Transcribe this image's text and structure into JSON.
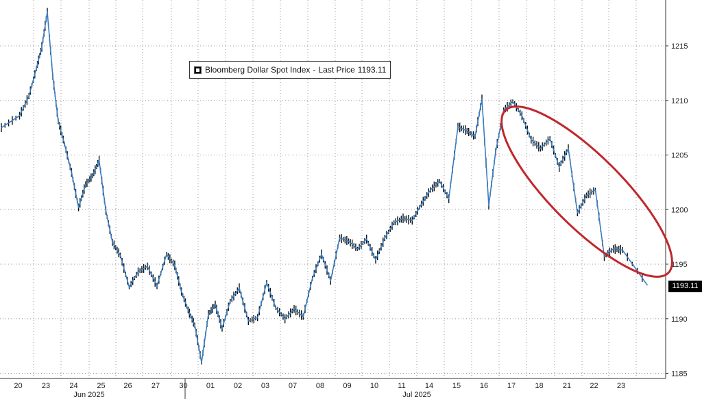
{
  "legend": {
    "series_name": "Bloomberg Dollar Spot Index",
    "field": "Last Price",
    "value": "1193.11",
    "separator": "-"
  },
  "last_value_tag": "1193.11",
  "colors": {
    "line": "#3a7fc1",
    "candle_wick": "#111111",
    "annotation_ellipse": "#c0282d",
    "grid": "#9a9a9a"
  },
  "chart_data": {
    "type": "line",
    "title": "",
    "series": [
      {
        "name": "Bloomberg Dollar Spot Index - Last Price",
        "last": 1193.11
      }
    ],
    "x_tick_labels": [
      "20",
      "23",
      "24",
      "25",
      "26",
      "27",
      "30",
      "01",
      "02",
      "03",
      "07",
      "08",
      "09",
      "10",
      "11",
      "14",
      "15",
      "16",
      "17",
      "18",
      "21",
      "22",
      "23"
    ],
    "month_labels": [
      "Jun 2025",
      "Jul 2025"
    ],
    "y_tick_labels": [
      "1215",
      "1210",
      "1205",
      "1200",
      "1195",
      "1190",
      "1185"
    ],
    "ylim": [
      1184.5,
      1219.5
    ],
    "grid": true,
    "y_axis_side": "right",
    "x": [
      "06-20",
      "06-20",
      "06-20",
      "06-23",
      "06-23",
      "06-23",
      "06-23",
      "06-23",
      "06-24",
      "06-24",
      "06-24",
      "06-24",
      "06-25",
      "06-25",
      "06-25",
      "06-25",
      "06-26",
      "06-26",
      "06-26",
      "06-27",
      "06-27",
      "06-27",
      "06-30",
      "06-30",
      "06-30",
      "06-30",
      "07-01",
      "07-01",
      "07-01",
      "07-01",
      "07-02",
      "07-02",
      "07-02",
      "07-03",
      "07-03",
      "07-03",
      "07-07",
      "07-07",
      "07-07",
      "07-08",
      "07-08",
      "07-08",
      "07-09",
      "07-09",
      "07-09",
      "07-10",
      "07-10",
      "07-10",
      "07-11",
      "07-11",
      "07-11",
      "07-14",
      "07-14",
      "07-14",
      "07-15",
      "07-15",
      "07-15",
      "07-16",
      "07-16",
      "07-16",
      "07-16",
      "07-17",
      "07-17",
      "07-17",
      "07-18",
      "07-18",
      "07-18",
      "07-21",
      "07-21",
      "07-21",
      "07-22",
      "07-22",
      "07-22",
      "07-23",
      "07-23",
      "07-23"
    ],
    "values": [
      1207.5,
      1208.6,
      1210.4,
      1212.9,
      1214.9,
      1218.1,
      1212.2,
      1208.1,
      1206.0,
      1203.4,
      1200.2,
      1202.3,
      1203.1,
      1204.5,
      1199.9,
      1197.0,
      1195.8,
      1192.9,
      1194.3,
      1194.8,
      1193.0,
      1195.9,
      1194.9,
      1192.5,
      1190.8,
      1189.4,
      1186.0,
      1190.4,
      1191.3,
      1189.1,
      1191.6,
      1192.8,
      1189.8,
      1190.1,
      1193.3,
      1191.0,
      1190.0,
      1190.9,
      1190.2,
      1193.7,
      1195.9,
      1193.5,
      1197.4,
      1197.1,
      1196.4,
      1197.3,
      1195.4,
      1197.4,
      1198.8,
      1199.2,
      1199.0,
      1200.5,
      1201.8,
      1202.6,
      1201.0,
      1207.6,
      1207.2,
      1206.7,
      1210.1,
      1200.4,
      1205.3,
      1209.1,
      1209.9,
      1208.6,
      1206.4,
      1205.6,
      1206.5,
      1203.9,
      1205.6,
      1199.7,
      1201.3,
      1201.8,
      1195.7,
      1196.4,
      1196.3,
      1193.1
    ]
  },
  "annotation": {
    "type": "ellipse",
    "color": "#c0282d",
    "span": [
      "07-17",
      "07-23"
    ]
  }
}
